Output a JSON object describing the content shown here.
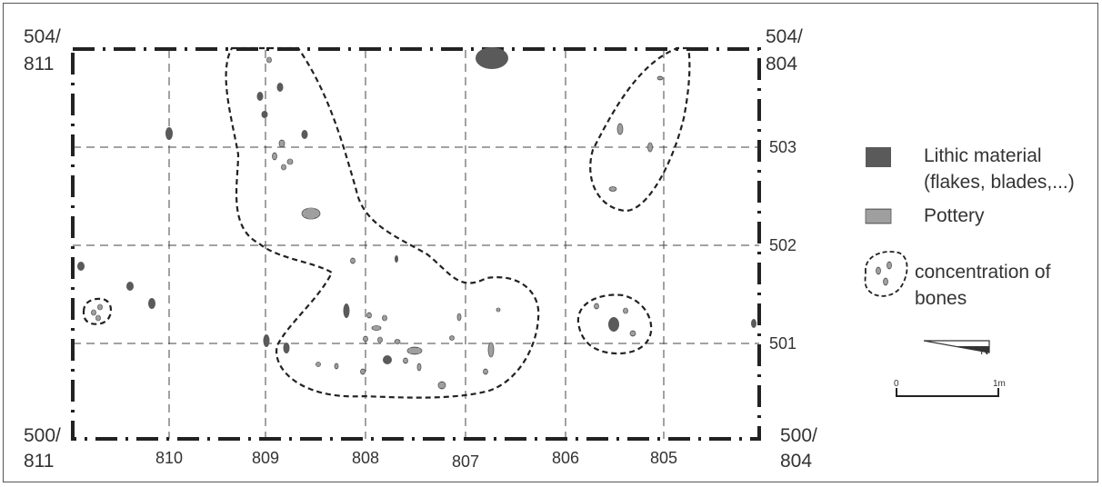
{
  "corners": {
    "top_left": [
      "504/",
      "811"
    ],
    "top_right": [
      "504/",
      "804"
    ],
    "bottom_left": [
      "500/",
      "811"
    ],
    "bottom_right": [
      "500/",
      "804"
    ]
  },
  "x_ticks": [
    "810",
    "809",
    "808",
    "807",
    "806",
    "805"
  ],
  "y_ticks": [
    "503",
    "502",
    "501"
  ],
  "legend": {
    "lithic": [
      "Lithic material",
      "(flakes, blades,...)"
    ],
    "pottery": "Pottery",
    "bones": [
      "concentration of",
      "bones"
    ]
  },
  "north": "N",
  "scale": {
    "start": "0",
    "end": "1m"
  },
  "colors": {
    "ink": "#333333",
    "lithic": "#5a5a5a",
    "pottery": "#8c8c8c",
    "frame": "#555555"
  }
}
